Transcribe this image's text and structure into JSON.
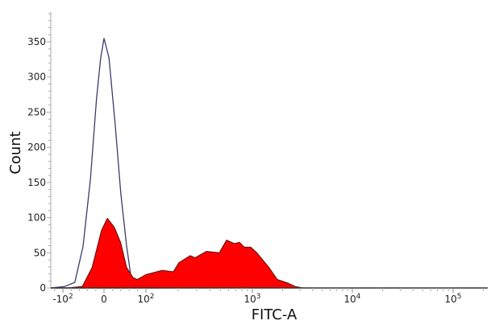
{
  "chart_data": {
    "type": "area",
    "xlabel": "FITC-A",
    "ylabel": "Count",
    "xscale": "biexponential (logicle)",
    "ylim": [
      0,
      390
    ],
    "y_ticks": [
      "0",
      "50",
      "100",
      "150",
      "200",
      "250",
      "300",
      "350"
    ],
    "y_tick_values": [
      0,
      50,
      100,
      150,
      200,
      250,
      300,
      350
    ],
    "x_ticks": [
      {
        "value": -100,
        "base": "-10",
        "exp": "2"
      },
      {
        "value": 0,
        "base": "0",
        "exp": ""
      },
      {
        "value": 100,
        "base": "10",
        "exp": "2"
      },
      {
        "value": 1000,
        "base": "10",
        "exp": "3"
      },
      {
        "value": 10000,
        "base": "10",
        "exp": "4"
      },
      {
        "value": 100000,
        "base": "10",
        "exp": "5"
      }
    ],
    "grid": false,
    "series": [
      {
        "style": "outline",
        "color": "#3a3a6e",
        "x": [
          -130,
          -96,
          -71,
          -51,
          -33,
          -18,
          -8,
          0,
          12,
          27,
          40,
          54,
          65,
          79,
          100,
          140
        ],
        "y": [
          0,
          2,
          8,
          59,
          155,
          270,
          327,
          355,
          327,
          231,
          135,
          59,
          13,
          2,
          1,
          0
        ]
      },
      {
        "style": "filled",
        "color": "#ff0000",
        "x": [
          -90,
          -55,
          -52,
          -29,
          -6,
          8,
          25,
          40,
          54,
          69,
          79,
          100,
          142,
          181,
          204,
          261,
          290,
          370,
          489,
          572,
          681,
          756,
          840,
          965,
          1110,
          1468,
          1778,
          2268,
          2700,
          3200
        ],
        "y": [
          0,
          2,
          3,
          29,
          82,
          99,
          86,
          64,
          29,
          15,
          12,
          19,
          25,
          23,
          36,
          46,
          43,
          52,
          50,
          68,
          63,
          65,
          58,
          58,
          50,
          29,
          12,
          7,
          2,
          0
        ]
      }
    ]
  }
}
